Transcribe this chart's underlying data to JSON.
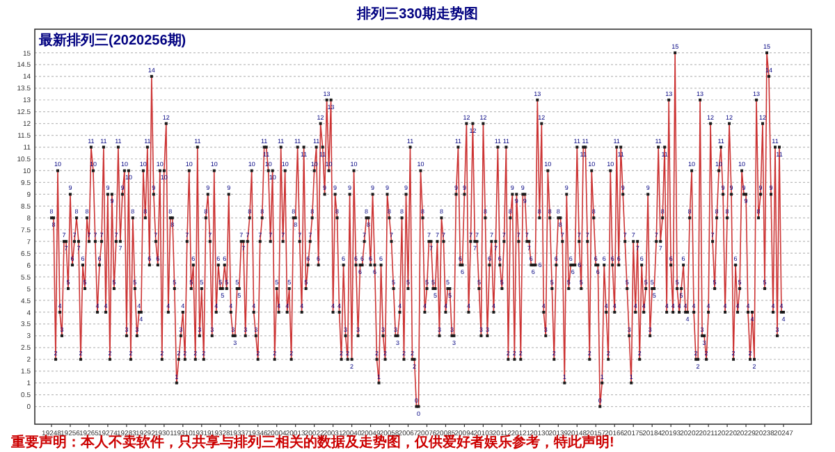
{
  "chart_data": {
    "type": "line",
    "title": "排列三330期走势图",
    "subtitle": "最新排列三(2020256期)",
    "annotations": [
      "重要声明：本人不卖软件，只共享与排列三相关的数据及走势图，仅供爱好者娱乐参考，特此声明!"
    ],
    "marker": "square",
    "data_labels": true,
    "grid": "y",
    "ylim": [
      -0.75,
      16
    ],
    "yticks": [
      0,
      0.5,
      1,
      1.5,
      2,
      2.5,
      3,
      3.5,
      4,
      4.5,
      5,
      5.5,
      6,
      6.5,
      7,
      7.5,
      8,
      8.5,
      9,
      9.5,
      10,
      10.5,
      11,
      11.5,
      12,
      12.5,
      13,
      13.5,
      14,
      14.5,
      15
    ],
    "categories": [
      "19248",
      null,
      null,
      null,
      null,
      null,
      null,
      null,
      null,
      "19256",
      null,
      null,
      null,
      null,
      null,
      null,
      null,
      null,
      "19265",
      null,
      null,
      null,
      null,
      null,
      null,
      null,
      null,
      "19274",
      null,
      null,
      null,
      null,
      null,
      null,
      null,
      null,
      "19283",
      null,
      null,
      null,
      null,
      null,
      null,
      null,
      null,
      "19292",
      null,
      null,
      null,
      null,
      null,
      null,
      null,
      null,
      "19301",
      null,
      null,
      null,
      null,
      null,
      null,
      null,
      null,
      "19310",
      null,
      null,
      null,
      null,
      null,
      null,
      null,
      null,
      "19319",
      null,
      null,
      null,
      null,
      null,
      null,
      null,
      null,
      "19328",
      null,
      null,
      null,
      null,
      null,
      null,
      null,
      null,
      "19337",
      null,
      null,
      null,
      null,
      null,
      null,
      null,
      null,
      "19346",
      null,
      null,
      null,
      null,
      null,
      null,
      null,
      null,
      "20004",
      null,
      null,
      null,
      null,
      null,
      null,
      null,
      null,
      "20013",
      null,
      null,
      null,
      null,
      null,
      null,
      null,
      null,
      "20022",
      null,
      null,
      null,
      null,
      null,
      null,
      null,
      null,
      "20031",
      null,
      null,
      null,
      null,
      null,
      null,
      null,
      null,
      "20040",
      null,
      null,
      null,
      null,
      null,
      null,
      null,
      null,
      "20049",
      null,
      null,
      null,
      null,
      null,
      null,
      null,
      null,
      "20058",
      null,
      null,
      null,
      null,
      null,
      null,
      null,
      null,
      "20067",
      null,
      null,
      null,
      null,
      null,
      null,
      null,
      null,
      "20076",
      null,
      null,
      null,
      null,
      null,
      null,
      null,
      null,
      "20085",
      null,
      null,
      null,
      null,
      null,
      null,
      null,
      null,
      "20094",
      null,
      null,
      null,
      null,
      null,
      null,
      null,
      null,
      "20103",
      null,
      null,
      null,
      null,
      null,
      null,
      null,
      null,
      "20112",
      null,
      null,
      null,
      null,
      null,
      null,
      null,
      null,
      "20121",
      null,
      null,
      null,
      null,
      null,
      null,
      null,
      null,
      "20130",
      null,
      null,
      null,
      null,
      null,
      null,
      null,
      null,
      "20139",
      null,
      null,
      null,
      null,
      null,
      null,
      null,
      null,
      "20148",
      null,
      null,
      null,
      null,
      null,
      null,
      null,
      null,
      "20157",
      null,
      null,
      null,
      null,
      null,
      null,
      null,
      null,
      "20166",
      null,
      null,
      null,
      null,
      null,
      null,
      null,
      null,
      "20175",
      null,
      null,
      null,
      null,
      null,
      null,
      null,
      null,
      "20184",
      null,
      null,
      null,
      null,
      null,
      null,
      null,
      null,
      "20193",
      null,
      null,
      null,
      null,
      null,
      null,
      null,
      null,
      "20202",
      null,
      null,
      null,
      null,
      null,
      null,
      null,
      null,
      "20211",
      null,
      null,
      null,
      null,
      null,
      null,
      null,
      null,
      "20220",
      null,
      null,
      null,
      null,
      null,
      null,
      null,
      null,
      "20229",
      null,
      null,
      null,
      null,
      null,
      null,
      null,
      null,
      "20238",
      null,
      null,
      null,
      null,
      null,
      null,
      null,
      null,
      "20247"
    ],
    "series": [
      {
        "color": "#cc3333",
        "values": [
          8,
          8,
          2,
          10,
          4,
          3,
          7,
          7,
          5,
          9,
          6,
          7,
          8,
          7,
          2,
          6,
          5,
          8,
          7,
          11,
          10,
          7,
          4,
          6,
          7,
          11,
          4,
          9,
          2,
          9,
          5,
          7,
          11,
          7,
          9,
          10,
          3,
          10,
          2,
          8,
          5,
          3,
          4,
          4,
          10,
          8,
          11,
          6,
          14,
          9,
          7,
          6,
          10,
          2,
          10,
          12,
          4,
          8,
          8,
          5,
          1,
          2,
          3,
          4,
          2,
          7,
          10,
          5,
          6,
          2,
          11,
          3,
          5,
          2,
          8,
          9,
          7,
          3,
          10,
          4,
          6,
          5,
          5,
          6,
          5,
          9,
          4,
          3,
          3,
          5,
          5,
          7,
          7,
          3,
          7,
          8,
          10,
          4,
          3,
          2,
          7,
          8,
          11,
          11,
          10,
          7,
          10,
          2,
          5,
          4,
          11,
          7,
          10,
          4,
          5,
          2,
          8,
          8,
          11,
          7,
          4,
          11,
          5,
          6,
          7,
          8,
          10,
          11,
          6,
          12,
          11,
          9,
          13,
          10,
          13,
          4,
          9,
          8,
          4,
          2,
          6,
          3,
          2,
          9,
          2,
          10,
          6,
          3,
          6,
          6,
          7,
          8,
          8,
          6,
          9,
          6,
          2,
          1,
          6,
          3,
          2,
          9,
          8,
          7,
          5,
          3,
          3,
          4,
          8,
          2,
          9,
          5,
          11,
          2,
          2,
          0,
          0,
          10,
          8,
          4,
          5,
          7,
          7,
          5,
          5,
          7,
          3,
          8,
          7,
          4,
          5,
          5,
          3,
          3,
          9,
          11,
          6,
          6,
          9,
          12,
          4,
          7,
          12,
          7,
          7,
          5,
          3,
          12,
          8,
          3,
          6,
          7,
          4,
          7,
          11,
          6,
          5,
          7,
          11,
          2,
          8,
          9,
          2,
          9,
          7,
          2,
          9,
          9,
          7,
          7,
          6,
          6,
          6,
          13,
          8,
          12,
          4,
          3,
          10,
          8,
          5,
          2,
          6,
          8,
          8,
          7,
          1,
          9,
          5,
          6,
          6,
          6,
          11,
          7,
          5,
          11,
          11,
          7,
          2,
          10,
          8,
          6,
          6,
          0,
          1,
          6,
          4,
          2,
          10,
          6,
          4,
          11,
          6,
          11,
          9,
          7,
          5,
          3,
          1,
          7,
          4,
          7,
          2,
          6,
          4,
          5,
          9,
          3,
          5,
          5,
          7,
          11,
          7,
          8,
          11,
          4,
          13,
          6,
          4,
          15,
          5,
          4,
          5,
          6,
          4,
          4,
          8,
          10,
          4,
          2,
          2,
          13,
          3,
          3,
          2,
          4,
          12,
          7,
          5,
          8,
          10,
          11,
          9,
          4,
          8,
          12,
          9,
          2,
          6,
          4,
          5,
          10,
          9,
          9,
          4,
          2,
          4,
          2,
          13,
          8,
          9,
          12,
          5,
          15,
          14,
          9,
          4,
          11,
          3,
          11,
          4,
          4
        ]
      }
    ]
  }
}
